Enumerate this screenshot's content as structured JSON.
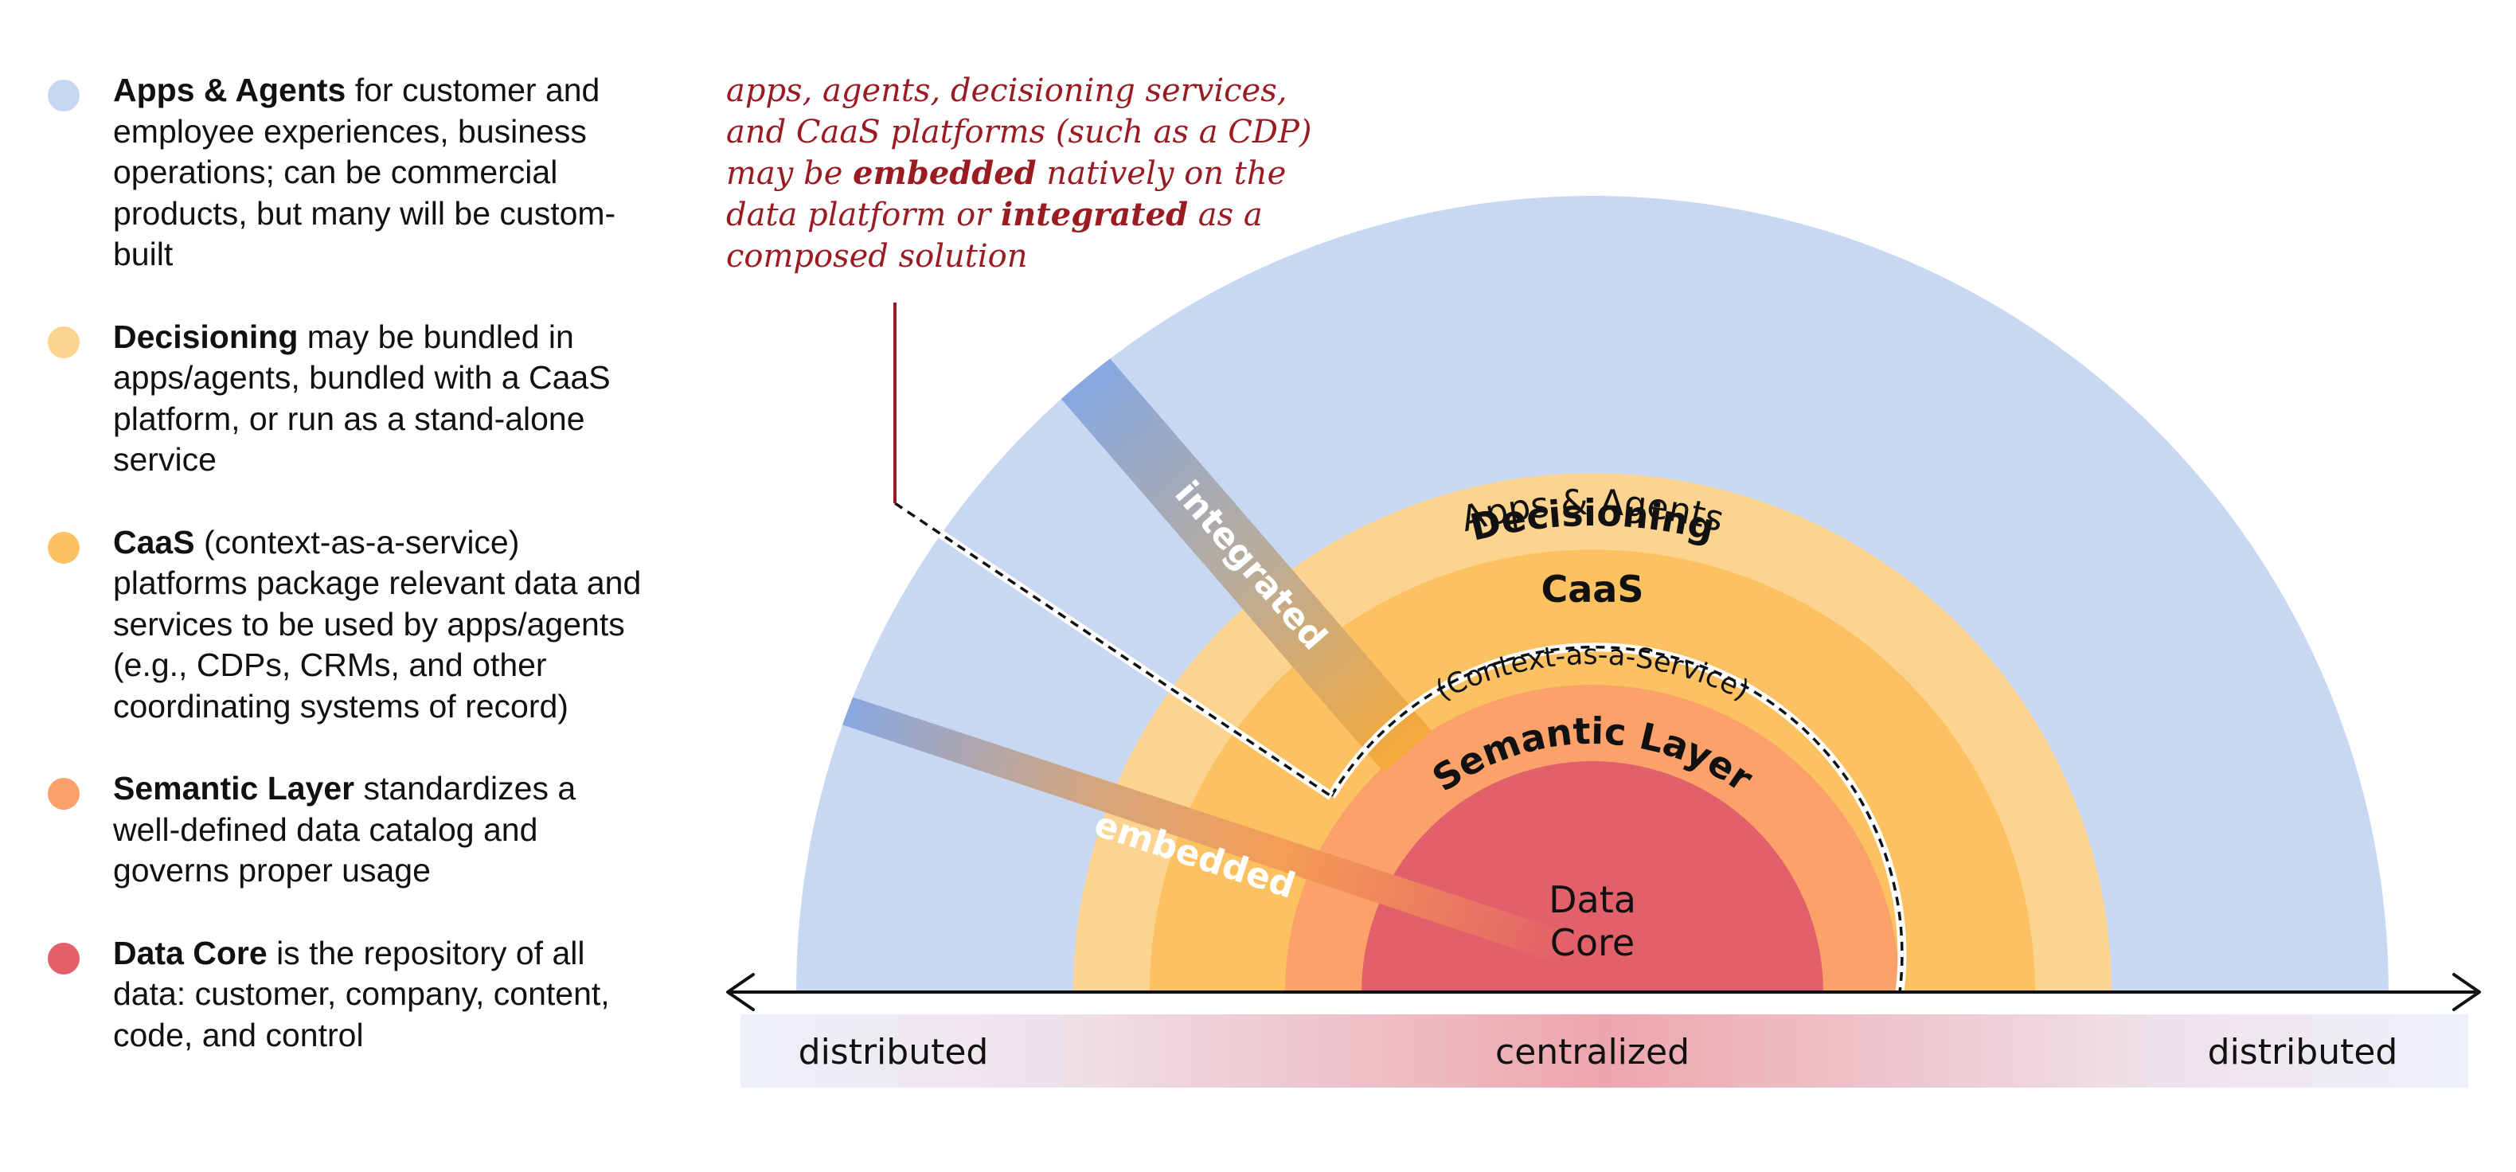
{
  "legend": [
    {
      "title": "Apps & Agents",
      "text": " for customer and employee experiences, business operations; can be commercial products, but many will be custom-built",
      "color": "#c9d8f2"
    },
    {
      "title": "Decisioning",
      "text": " may be bundled in apps/agents, bundled with a CaaS platform, or run as a stand-alone service",
      "color": "#fdd48f"
    },
    {
      "title": "CaaS",
      "text": " (context-as-a-service) platforms package relevant data and services to be used by apps/agents (e.g., CDPs, CRMs, and other coordinating systems of record)",
      "color": "#fcc262"
    },
    {
      "title": "Semantic Layer",
      "text": " standardizes a well-defined data catalog and governs proper usage",
      "color": "#fba26b"
    },
    {
      "title": "Data Core",
      "text": " is the repository of all data: customer, company, content, code, and control",
      "color": "#e2606a"
    }
  ],
  "note": {
    "part1": "apps, agents, decisioning services, and CaaS platforms (such as a CDP) may be ",
    "bold1": "embedded",
    "part2": " natively on the data platform or ",
    "bold2": "integrated",
    "part3": " as a composed solution"
  },
  "rings": {
    "apps": "Apps & Agents",
    "decisioning": "Decisioning",
    "caas": "CaaS",
    "caas_sub": "(Context-as-a-Service)",
    "semantic": "Semantic Layer",
    "core_line1": "Data",
    "core_line2": "Core"
  },
  "bands": {
    "integrated": "integrated",
    "embedded": "embedded"
  },
  "axis": {
    "left": "distributed",
    "center": "centralized",
    "right": "distributed"
  },
  "colors": {
    "apps": "#c9d8f2",
    "decisioning": "#fdd48f",
    "caas": "#fcc262",
    "semantic": "#fba26b",
    "core": "#e2606a",
    "note": "#9b1b22",
    "band_start": "#86a8e2"
  }
}
